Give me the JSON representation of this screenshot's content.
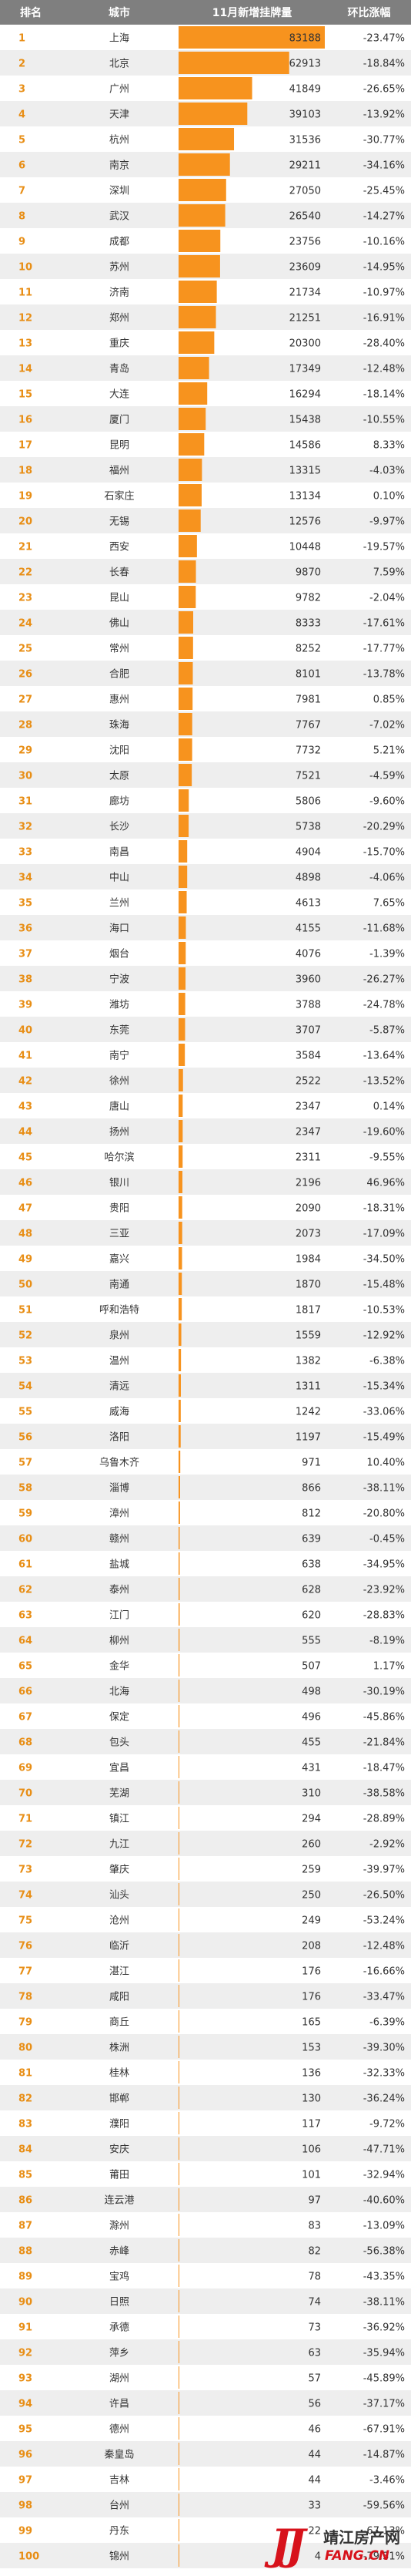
{
  "chart_data": {
    "type": "bar",
    "columns": [
      "排名",
      "城市",
      "11月新增挂牌量",
      "环比涨幅"
    ],
    "ranks": [
      1,
      2,
      3,
      4,
      5,
      6,
      7,
      8,
      9,
      10,
      11,
      12,
      13,
      14,
      15,
      16,
      17,
      18,
      19,
      20,
      21,
      22,
      23,
      24,
      25,
      26,
      27,
      28,
      29,
      30,
      31,
      32,
      33,
      34,
      35,
      36,
      37,
      38,
      39,
      40,
      41,
      42,
      43,
      44,
      45,
      46,
      47,
      48,
      49,
      50,
      51,
      52,
      53,
      54,
      55,
      56,
      57,
      58,
      59,
      60,
      61,
      62,
      63,
      64,
      65,
      66,
      67,
      68,
      69,
      70,
      71,
      72,
      73,
      74,
      75,
      76,
      77,
      78,
      79,
      80,
      81,
      82,
      83,
      84,
      85,
      86,
      87,
      88,
      89,
      90,
      91,
      92,
      93,
      94,
      95,
      96,
      97,
      98,
      99,
      100
    ],
    "categories": [
      "上海",
      "北京",
      "广州",
      "天津",
      "杭州",
      "南京",
      "深圳",
      "武汉",
      "成都",
      "苏州",
      "济南",
      "郑州",
      "重庆",
      "青岛",
      "大连",
      "厦门",
      "昆明",
      "福州",
      "石家庄",
      "无锡",
      "西安",
      "长春",
      "昆山",
      "佛山",
      "常州",
      "合肥",
      "惠州",
      "珠海",
      "沈阳",
      "太原",
      "廊坊",
      "长沙",
      "南昌",
      "中山",
      "兰州",
      "海口",
      "烟台",
      "宁波",
      "潍坊",
      "东莞",
      "南宁",
      "徐州",
      "唐山",
      "扬州",
      "哈尔滨",
      "银川",
      "贵阳",
      "三亚",
      "嘉兴",
      "南通",
      "呼和浩特",
      "泉州",
      "温州",
      "清远",
      "威海",
      "洛阳",
      "乌鲁木齐",
      "淄博",
      "漳州",
      "赣州",
      "盐城",
      "泰州",
      "江门",
      "柳州",
      "金华",
      "北海",
      "保定",
      "包头",
      "宜昌",
      "芜湖",
      "镇江",
      "九江",
      "肇庆",
      "汕头",
      "沧州",
      "临沂",
      "湛江",
      "咸阳",
      "商丘",
      "株洲",
      "桂林",
      "邯郸",
      "濮阳",
      "安庆",
      "莆田",
      "连云港",
      "滁州",
      "赤峰",
      "宝鸡",
      "日照",
      "承德",
      "萍乡",
      "湖州",
      "许昌",
      "德州",
      "秦皇岛",
      "吉林",
      "台州",
      "丹东",
      "锦州"
    ],
    "values": [
      83188,
      62913,
      41849,
      39103,
      31536,
      29211,
      27050,
      26540,
      23756,
      23609,
      21734,
      21251,
      20300,
      17349,
      16294,
      15438,
      14586,
      13315,
      13134,
      12576,
      10448,
      9870,
      9782,
      8333,
      8252,
      8101,
      7981,
      7767,
      7732,
      7521,
      5806,
      5738,
      4904,
      4898,
      4613,
      4155,
      4076,
      3960,
      3788,
      3707,
      3584,
      2522,
      2347,
      2347,
      2311,
      2196,
      2090,
      2073,
      1984,
      1870,
      1817,
      1559,
      1382,
      1311,
      1242,
      1197,
      971,
      866,
      812,
      639,
      638,
      628,
      620,
      555,
      507,
      498,
      496,
      455,
      431,
      310,
      294,
      260,
      259,
      250,
      249,
      208,
      176,
      176,
      165,
      153,
      136,
      130,
      117,
      106,
      101,
      97,
      83,
      82,
      78,
      74,
      73,
      63,
      57,
      56,
      46,
      44,
      44,
      33,
      22,
      4
    ],
    "changes": [
      "-23.47%",
      "-18.84%",
      "-26.65%",
      "-13.92%",
      "-30.77%",
      "-34.16%",
      "-25.45%",
      "-14.27%",
      "-10.16%",
      "-14.95%",
      "-10.97%",
      "-16.91%",
      "-28.40%",
      "-12.48%",
      "-18.14%",
      "-10.55%",
      "8.33%",
      "-4.03%",
      "0.10%",
      "-9.97%",
      "-19.57%",
      "7.59%",
      "-2.04%",
      "-17.61%",
      "-17.77%",
      "-13.78%",
      "0.85%",
      "-7.02%",
      "5.21%",
      "-4.59%",
      "-9.60%",
      "-20.29%",
      "-15.70%",
      "-4.06%",
      "7.65%",
      "-11.68%",
      "-1.39%",
      "-26.27%",
      "-24.78%",
      "-5.87%",
      "-13.64%",
      "-13.52%",
      "0.14%",
      "-19.60%",
      "-9.55%",
      "46.96%",
      "-18.31%",
      "-17.09%",
      "-34.50%",
      "-15.48%",
      "-10.53%",
      "-12.92%",
      "-6.38%",
      "-15.34%",
      "-33.06%",
      "-15.49%",
      "10.40%",
      "-38.11%",
      "-20.80%",
      "-0.45%",
      "-34.95%",
      "-23.92%",
      "-28.83%",
      "-8.19%",
      "1.17%",
      "-30.19%",
      "-45.86%",
      "-21.84%",
      "-18.47%",
      "-38.58%",
      "-28.89%",
      "-2.92%",
      "-39.97%",
      "-26.50%",
      "-53.24%",
      "-12.48%",
      "-16.66%",
      "-33.47%",
      "-6.39%",
      "-39.30%",
      "-32.33%",
      "-36.24%",
      "-9.72%",
      "-47.71%",
      "-32.94%",
      "-40.60%",
      "-13.09%",
      "-56.38%",
      "-43.35%",
      "-38.11%",
      "-36.92%",
      "-35.94%",
      "-45.89%",
      "-37.17%",
      "-67.91%",
      "-14.87%",
      "-3.46%",
      "-59.56%",
      "-67.13%",
      "-79.31%"
    ],
    "xlim": [
      0,
      83188
    ]
  },
  "colors": {
    "header_bg": "#7f7f7f",
    "row_odd": "#ffffff",
    "row_even": "#eeeeee",
    "bar": "#f7931e",
    "rank_text": "#e88e15"
  },
  "watermark": {
    "logo": "JJ",
    "name": "靖江房产网",
    "domain": "FANG.CN"
  }
}
